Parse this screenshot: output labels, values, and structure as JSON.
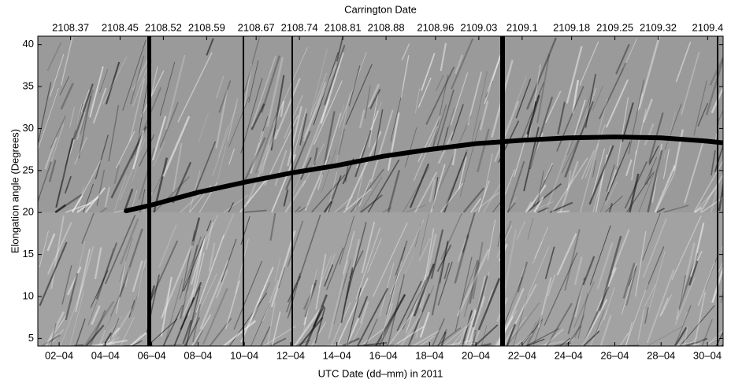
{
  "chart_data": {
    "type": "line",
    "title": "Carrington Date",
    "xlabel": "UTC Date (dd–mm) in 2011",
    "ylabel": "Elongation angle (Degrees)",
    "xlim": [
      1.08,
      30.68
    ],
    "xticks": [
      {
        "value": 2,
        "label": "02–04"
      },
      {
        "value": 4,
        "label": "04–04"
      },
      {
        "value": 6,
        "label": "06–04"
      },
      {
        "value": 8,
        "label": "08–04"
      },
      {
        "value": 10,
        "label": "10–04"
      },
      {
        "value": 12,
        "label": "12–04"
      },
      {
        "value": 14,
        "label": "14–04"
      },
      {
        "value": 16,
        "label": "16–04"
      },
      {
        "value": 18,
        "label": "18–04"
      },
      {
        "value": 20,
        "label": "20–04"
      },
      {
        "value": 22,
        "label": "22–04"
      },
      {
        "value": 24,
        "label": "24–04"
      },
      {
        "value": 26,
        "label": "26–04"
      },
      {
        "value": 28,
        "label": "28–04"
      },
      {
        "value": 30,
        "label": "30–04"
      }
    ],
    "x2lim": [
      2108.317,
      2109.425
    ],
    "x2ticks": [
      2108.37,
      2108.45,
      2108.52,
      2108.59,
      2108.67,
      2108.74,
      2108.81,
      2108.88,
      2108.96,
      2109.03,
      2109.1,
      2109.18,
      2109.25,
      2109.32,
      2109.4
    ],
    "ylim": [
      4.1,
      41
    ],
    "yticks": [
      5,
      10,
      15,
      20,
      25,
      30,
      35,
      40
    ],
    "series": [
      {
        "color": "#000000",
        "x": [
          4.9,
          6,
          8,
          10,
          12,
          14,
          16,
          18,
          20,
          22,
          24,
          26,
          28,
          30,
          30.68
        ],
        "values": [
          20.2,
          20.9,
          22.4,
          23.6,
          24.7,
          25.6,
          26.7,
          27.5,
          28.2,
          28.6,
          28.9,
          29.0,
          28.9,
          28.5,
          28.3
        ]
      }
    ]
  }
}
